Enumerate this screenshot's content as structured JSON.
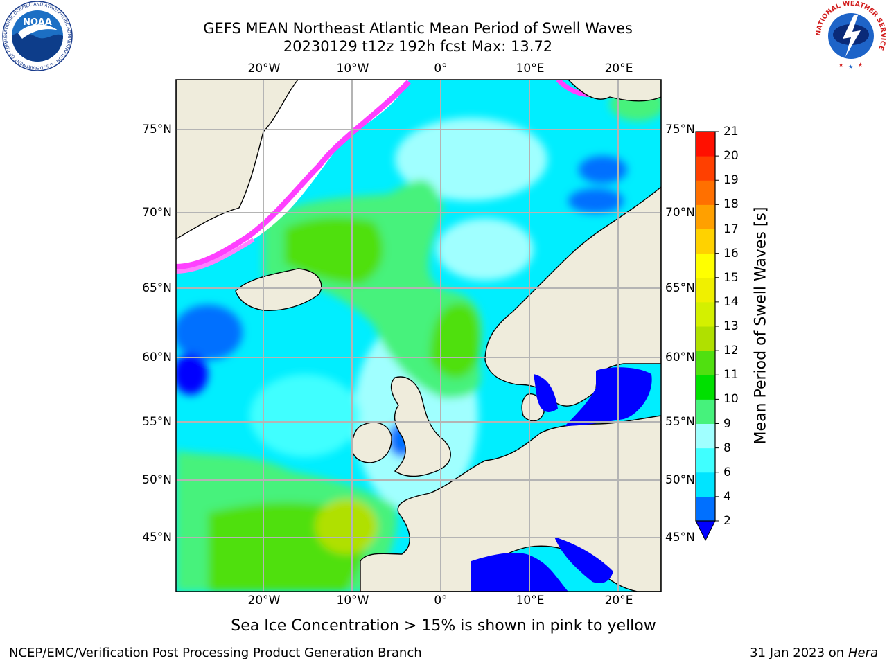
{
  "header": {
    "title_line1": "GEFS MEAN Northeast Atlantic Mean Period of Swell Waves",
    "title_line2": "20230129 t12z 192h fcst   Max: 13.72"
  },
  "logos": {
    "noaa_text": "NOAA",
    "noaa_ring_text": "NATIONAL OCEANIC AND ATMOSPHERIC ADMINISTRATION · U.S. DEPARTMENT OF COMMERCE",
    "nws_ring_text": "NATIONAL WEATHER SERVICE"
  },
  "map": {
    "lon_labels": [
      "20°W",
      "10°W",
      "0°",
      "10°E",
      "20°E"
    ],
    "lat_labels": [
      "75°N",
      "70°N",
      "65°N",
      "60°N",
      "55°N",
      "50°N",
      "45°N"
    ],
    "colors": {
      "land": "#efecdc",
      "frame": "#000000",
      "grid": "#b4b4b4"
    }
  },
  "colorbar": {
    "label": "Mean Period of Swell Waves [s]",
    "ticks": [
      "2",
      "4",
      "6",
      "8",
      "9",
      "10",
      "11",
      "12",
      "13",
      "14",
      "15",
      "16",
      "17",
      "18",
      "19",
      "20",
      "21"
    ],
    "colors": [
      "#0000ff",
      "#0070ff",
      "#00e4ff",
      "#40ffff",
      "#a0ffff",
      "#46f27c",
      "#00e000",
      "#50e010",
      "#b0e000",
      "#d4f000",
      "#f0f000",
      "#ffff00",
      "#ffd200",
      "#ffa000",
      "#ff7000",
      "#ff4000",
      "#ff1000",
      "#ff0000"
    ]
  },
  "note": "Sea Ice Concentration > 15% is shown in pink to yellow",
  "footer": {
    "left": "NCEP/EMC/Verification Post Processing Product Generation Branch",
    "right_date": "31 Jan 2023 on ",
    "right_host": "Hera"
  }
}
